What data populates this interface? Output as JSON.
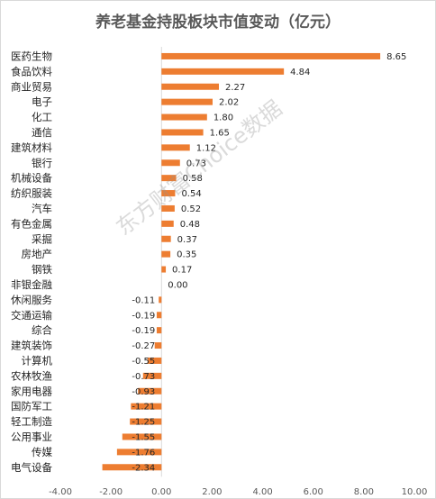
{
  "chart_data": {
    "type": "bar",
    "orientation": "horizontal",
    "title": "养老基金持股板块市值变动（亿元）",
    "categories": [
      "医药生物",
      "食品饮料",
      "商业贸易",
      "电子",
      "化工",
      "通信",
      "建筑材料",
      "银行",
      "机械设备",
      "纺织服装",
      "汽车",
      "有色金属",
      "采掘",
      "房地产",
      "钢铁",
      "非银金融",
      "休闲服务",
      "交通运输",
      "综合",
      "建筑装饰",
      "计算机",
      "农林牧渔",
      "家用电器",
      "国防军工",
      "轻工制造",
      "公用事业",
      "传媒",
      "电气设备"
    ],
    "values": [
      8.65,
      4.84,
      2.27,
      2.02,
      1.8,
      1.65,
      1.12,
      0.73,
      0.58,
      0.54,
      0.52,
      0.48,
      0.37,
      0.35,
      0.17,
      0.0,
      -0.11,
      -0.19,
      -0.19,
      -0.27,
      -0.55,
      -0.73,
      -0.93,
      -1.21,
      -1.25,
      -1.55,
      -1.76,
      -2.34
    ],
    "value_labels": [
      "8.65",
      "4.84",
      "2.27",
      "2.02",
      "1.80",
      "1.65",
      "1.12",
      "0.73",
      "0.58",
      "0.54",
      "0.52",
      "0.48",
      "0.37",
      "0.35",
      "0.17",
      "0.00",
      "-0.11",
      "-0.19",
      "-0.19",
      "-0.27",
      "-0.55",
      "-0.73",
      "-0.93",
      "-1.21",
      "-1.25",
      "-1.55",
      "-1.76",
      "-2.34"
    ],
    "xlim": [
      -4,
      10
    ],
    "x_ticks": [
      "-4.00",
      "-2.00",
      "0.00",
      "2.00",
      "4.00",
      "6.00",
      "8.00",
      "10.00"
    ],
    "x_tick_values": [
      -4,
      -2,
      0,
      2,
      4,
      6,
      8,
      10
    ],
    "bar_color": "#ED7D31",
    "grid": false,
    "legend": "none"
  },
  "watermark": "东方财富Choice数据"
}
